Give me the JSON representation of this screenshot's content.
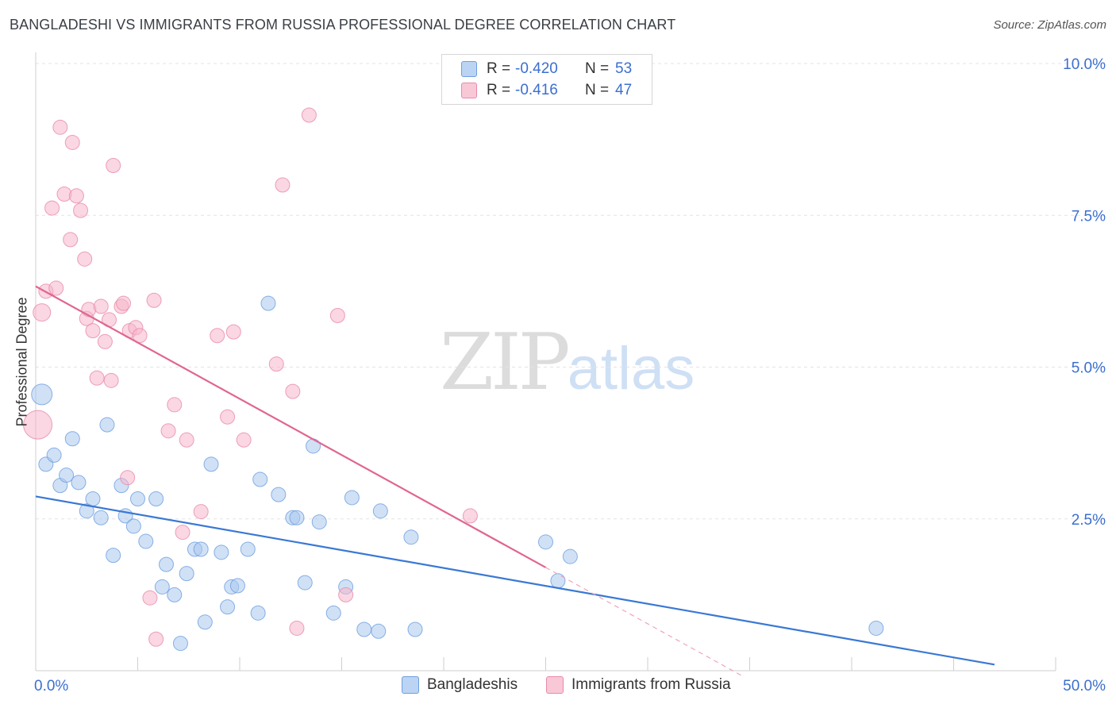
{
  "title": "BANGLADESHI VS IMMIGRANTS FROM RUSSIA PROFESSIONAL DEGREE CORRELATION CHART",
  "source": "Source: ZipAtlas.com",
  "watermark": {
    "zip": "ZIP",
    "atlas": "atlas"
  },
  "legend": {
    "rows": [
      {
        "r_label": "R =",
        "r_value": "-0.420",
        "n_label": "N =",
        "n_value": "53"
      },
      {
        "r_label": "R =",
        "r_value": "-0.416",
        "n_label": "N =",
        "n_value": "47"
      }
    ]
  },
  "bottom_legend": [
    "Bangladeshis",
    "Immigrants from Russia"
  ],
  "chart_data": {
    "type": "scatter",
    "title": "BANGLADESHI VS IMMIGRANTS FROM RUSSIA PROFESSIONAL DEGREE CORRELATION CHART",
    "xlabel": "",
    "ylabel": "Professional Degree",
    "xlim": [
      0,
      50
    ],
    "ylim": [
      0,
      10
    ],
    "x_tick_labels": [
      "0.0%",
      "50.0%"
    ],
    "y_tick_labels": [
      "2.5%",
      "5.0%",
      "7.5%",
      "10.0%"
    ],
    "y_ticks": [
      2.5,
      5.0,
      7.5,
      10.0
    ],
    "grid": true,
    "colors": {
      "bangladeshis": "#3a78d4",
      "bangladeshis_fill": "#a9c8ef",
      "russia": "#e0668f",
      "russia_fill": "#f5b7cb",
      "tick_label": "#3b6fd0"
    },
    "series": [
      {
        "name": "Bangladeshis",
        "trend": {
          "x": [
            0,
            47
          ],
          "y": [
            2.87,
            0.1
          ]
        },
        "points": [
          [
            0.3,
            4.55
          ],
          [
            0.5,
            3.4
          ],
          [
            0.9,
            3.55
          ],
          [
            1.2,
            3.05
          ],
          [
            1.5,
            3.22
          ],
          [
            1.8,
            3.82
          ],
          [
            2.1,
            3.1
          ],
          [
            2.5,
            2.63
          ],
          [
            2.8,
            2.83
          ],
          [
            3.2,
            2.52
          ],
          [
            3.5,
            4.05
          ],
          [
            3.8,
            1.9
          ],
          [
            4.2,
            3.05
          ],
          [
            4.4,
            2.55
          ],
          [
            4.8,
            2.38
          ],
          [
            5.0,
            2.83
          ],
          [
            5.4,
            2.13
          ],
          [
            5.9,
            2.83
          ],
          [
            6.2,
            1.38
          ],
          [
            6.4,
            1.75
          ],
          [
            6.8,
            1.25
          ],
          [
            7.1,
            0.45
          ],
          [
            7.4,
            1.6
          ],
          [
            7.8,
            2.0
          ],
          [
            8.1,
            2.0
          ],
          [
            8.3,
            0.8
          ],
          [
            8.6,
            3.4
          ],
          [
            9.1,
            1.95
          ],
          [
            9.4,
            1.05
          ],
          [
            9.6,
            1.38
          ],
          [
            9.9,
            1.4
          ],
          [
            10.4,
            2.0
          ],
          [
            10.9,
            0.95
          ],
          [
            11.0,
            3.15
          ],
          [
            11.4,
            6.05
          ],
          [
            11.9,
            2.9
          ],
          [
            12.6,
            2.52
          ],
          [
            12.8,
            2.52
          ],
          [
            13.2,
            1.45
          ],
          [
            13.6,
            3.7
          ],
          [
            13.9,
            2.45
          ],
          [
            14.6,
            0.95
          ],
          [
            15.2,
            1.38
          ],
          [
            15.5,
            2.85
          ],
          [
            16.1,
            0.68
          ],
          [
            16.8,
            0.65
          ],
          [
            16.9,
            2.63
          ],
          [
            18.4,
            2.2
          ],
          [
            18.6,
            0.68
          ],
          [
            25.0,
            2.12
          ],
          [
            25.6,
            1.48
          ],
          [
            26.2,
            1.88
          ],
          [
            41.2,
            0.7
          ]
        ]
      },
      {
        "name": "Immigrants from Russia",
        "trend": {
          "x": [
            0,
            25
          ],
          "y": [
            6.33,
            1.7
          ]
        },
        "trend_dashed": {
          "x": [
            25,
            34.6
          ],
          "y": [
            1.7,
            -0.08
          ]
        },
        "points": [
          [
            0.1,
            4.05
          ],
          [
            0.3,
            5.9
          ],
          [
            0.5,
            6.25
          ],
          [
            0.8,
            7.62
          ],
          [
            1.0,
            6.3
          ],
          [
            1.2,
            8.95
          ],
          [
            1.4,
            7.85
          ],
          [
            1.7,
            7.1
          ],
          [
            1.8,
            8.7
          ],
          [
            2.0,
            7.82
          ],
          [
            2.2,
            7.58
          ],
          [
            2.4,
            6.78
          ],
          [
            2.5,
            5.8
          ],
          [
            2.6,
            5.95
          ],
          [
            2.8,
            5.6
          ],
          [
            3.0,
            4.82
          ],
          [
            3.2,
            6.0
          ],
          [
            3.4,
            5.42
          ],
          [
            3.6,
            5.78
          ],
          [
            3.7,
            4.78
          ],
          [
            3.8,
            8.32
          ],
          [
            4.2,
            6.0
          ],
          [
            4.3,
            6.05
          ],
          [
            4.5,
            3.18
          ],
          [
            4.6,
            5.6
          ],
          [
            4.9,
            5.65
          ],
          [
            5.1,
            5.52
          ],
          [
            5.6,
            1.2
          ],
          [
            5.8,
            6.1
          ],
          [
            5.9,
            0.52
          ],
          [
            6.5,
            3.95
          ],
          [
            6.8,
            4.38
          ],
          [
            7.2,
            2.28
          ],
          [
            7.4,
            3.8
          ],
          [
            8.1,
            2.62
          ],
          [
            8.9,
            5.52
          ],
          [
            9.4,
            4.18
          ],
          [
            9.7,
            5.58
          ],
          [
            10.2,
            3.8
          ],
          [
            11.8,
            5.05
          ],
          [
            12.1,
            8.0
          ],
          [
            12.6,
            4.6
          ],
          [
            12.8,
            0.7
          ],
          [
            13.4,
            9.15
          ],
          [
            14.8,
            5.85
          ],
          [
            15.2,
            1.25
          ],
          [
            21.3,
            2.55
          ]
        ]
      }
    ]
  }
}
